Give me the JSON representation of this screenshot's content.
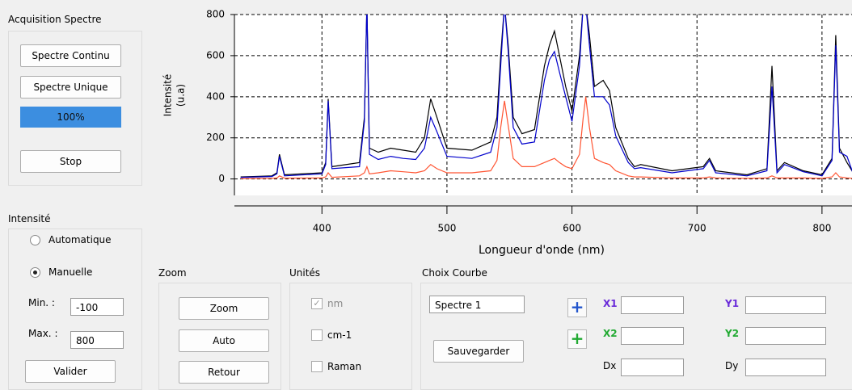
{
  "acquisition": {
    "title": "Acquisition Spectre",
    "buttons": [
      "Spectre Continu",
      "Spectre Unique"
    ],
    "progress": "100%",
    "stop": "Stop"
  },
  "intensite": {
    "title": "Intensité",
    "options": [
      "Automatique",
      "Manuelle"
    ],
    "min_label": "Min. :",
    "min": "-100",
    "max_label": "Max. :",
    "max": "800",
    "validate": "Valider"
  },
  "zoom": {
    "title": "Zoom",
    "buttons": [
      "Zoom",
      "Auto",
      "Retour"
    ]
  },
  "unites": {
    "title": "Unités",
    "options": [
      "nm",
      "cm-1",
      "Raman"
    ]
  },
  "choix": {
    "title": "Choix Courbe",
    "select": "Spectre 1",
    "save": "Sauvegarder",
    "fields": [
      "X1",
      "X2",
      "Dx",
      "Y1",
      "Y2",
      "Dy"
    ]
  },
  "chart_data": {
    "type": "line",
    "ylabel": [
      "Intensité",
      "(u.a)"
    ],
    "xlabel": "Longueur d'onde (nm)",
    "xlim": [
      330,
      824
    ],
    "ylim": [
      -80,
      800
    ],
    "xticks": [
      400,
      500,
      600,
      700,
      800
    ],
    "yticks": [
      0,
      200,
      400,
      600,
      800
    ],
    "grid": true,
    "x": [
      335,
      360,
      364,
      366,
      370,
      400,
      403,
      405,
      408,
      430,
      434,
      436,
      438,
      445,
      455,
      465,
      475,
      482,
      487,
      492,
      500,
      520,
      535,
      540,
      543,
      546,
      549,
      553,
      560,
      570,
      578,
      582,
      586,
      590,
      595,
      600,
      606,
      609,
      611,
      614,
      618,
      625,
      630,
      635,
      645,
      650,
      655,
      680,
      705,
      710,
      715,
      740,
      756,
      760,
      764,
      770,
      785,
      800,
      808,
      811,
      814,
      820,
      825
    ],
    "series": [
      {
        "color": "#000000",
        "values": [
          10,
          15,
          30,
          120,
          20,
          30,
          80,
          390,
          60,
          80,
          300,
          850,
          150,
          130,
          150,
          140,
          130,
          200,
          390,
          300,
          150,
          140,
          180,
          300,
          600,
          850,
          650,
          300,
          220,
          240,
          550,
          650,
          720,
          600,
          450,
          330,
          600,
          850,
          850,
          700,
          450,
          480,
          430,
          250,
          100,
          60,
          70,
          40,
          60,
          100,
          40,
          20,
          50,
          550,
          40,
          80,
          40,
          20,
          100,
          700,
          150,
          80,
          30
        ]
      },
      {
        "color": "#0000cc",
        "values": [
          8,
          12,
          25,
          110,
          15,
          25,
          70,
          380,
          50,
          60,
          280,
          850,
          120,
          95,
          110,
          100,
          95,
          150,
          300,
          230,
          110,
          100,
          130,
          250,
          550,
          850,
          620,
          250,
          170,
          180,
          480,
          580,
          620,
          520,
          400,
          280,
          550,
          850,
          850,
          650,
          400,
          400,
          360,
          210,
          80,
          50,
          55,
          30,
          50,
          90,
          30,
          15,
          40,
          450,
          30,
          70,
          35,
          15,
          90,
          650,
          130,
          110,
          25
        ]
      },
      {
        "color": "#ff5533",
        "values": [
          2,
          3,
          5,
          15,
          4,
          5,
          10,
          30,
          8,
          15,
          30,
          60,
          25,
          30,
          40,
          35,
          30,
          40,
          70,
          50,
          30,
          30,
          40,
          90,
          250,
          380,
          260,
          100,
          60,
          60,
          80,
          90,
          100,
          80,
          60,
          50,
          120,
          300,
          400,
          250,
          100,
          80,
          70,
          40,
          15,
          10,
          10,
          5,
          5,
          10,
          5,
          3,
          5,
          15,
          5,
          5,
          5,
          3,
          10,
          30,
          10,
          5,
          3
        ]
      }
    ]
  }
}
